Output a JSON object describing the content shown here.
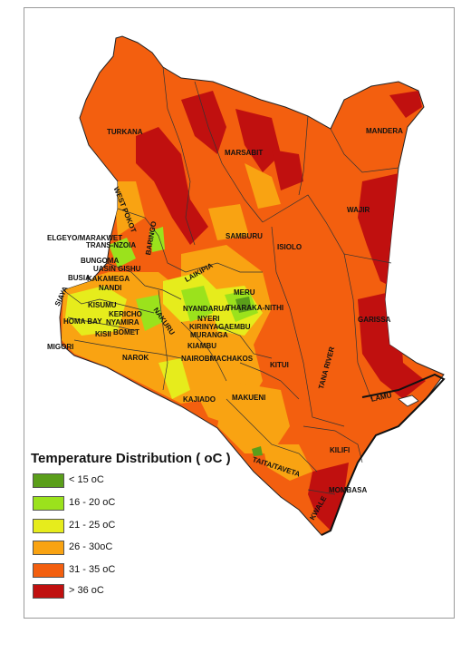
{
  "legend": {
    "title": "Temperature Distribution ( oC )",
    "classes": [
      {
        "label": "< 15 oC",
        "color": "#5a9e1a"
      },
      {
        "label": "16 - 20 oC",
        "color": "#9be21c"
      },
      {
        "label": "21 - 25 oC",
        "color": "#e6ec1c"
      },
      {
        "label": "26 - 30oC",
        "color": "#f9a312"
      },
      {
        "label": "31 - 35 oC",
        "color": "#f35f0f"
      },
      {
        "label": "> 36 oC",
        "color": "#c0100f"
      }
    ]
  },
  "counties": {
    "turkana": "TURKANA",
    "marsabit": "MARSABIT",
    "mandera": "MANDERA",
    "wajir": "WAJIR",
    "west_pokot": "WEST POKOT",
    "elgeyo": "ELGEYO/MARAKWET",
    "trans_nzoia": "TRANS-NZOIA",
    "samburu": "SAMBURU",
    "isiolo": "ISIOLO",
    "bungoma": "BUNGOMA",
    "uasin_gishu": "UASIN GISHU",
    "busia": "BUSIA",
    "kakamega": "KAKAMEGA",
    "nandi": "NANDI",
    "baringo": "BARINGO",
    "laikipia": "LAIKIPIA",
    "meru": "MERU",
    "siaya": "SIAYA",
    "kisumu": "KISUMU",
    "kericho": "KERICHO",
    "homa_bay": "HOMA BAY",
    "nyamira": "NYAMIRA",
    "kisii": "KISII",
    "bomet": "BOMET",
    "migori": "MIGORI",
    "nakuru": "NAKURU",
    "nyandarua": "NYANDARUA",
    "nyeri": "NYERI",
    "tharaka_nithi": "THARAKA-NITHI",
    "kirinyaga": "KIRINYAGA",
    "embu": "EMBU",
    "muranga": "MURANGA",
    "kiambu": "KIAMBU",
    "nairobi": "NAIROBI",
    "machakos": "MACHAKOS",
    "narok": "NAROK",
    "kitui": "KITUI",
    "garissa": "GARISSA",
    "tana_river": "TANA RIVER",
    "lamu": "LAMU",
    "kajiado": "KAJIADO",
    "makueni": "MAKUENI",
    "taita_taveta": "TAITA/TAVETA",
    "kilifi": "KILIFI",
    "mombasa": "MOMBASA",
    "kwale": "KWALE"
  }
}
